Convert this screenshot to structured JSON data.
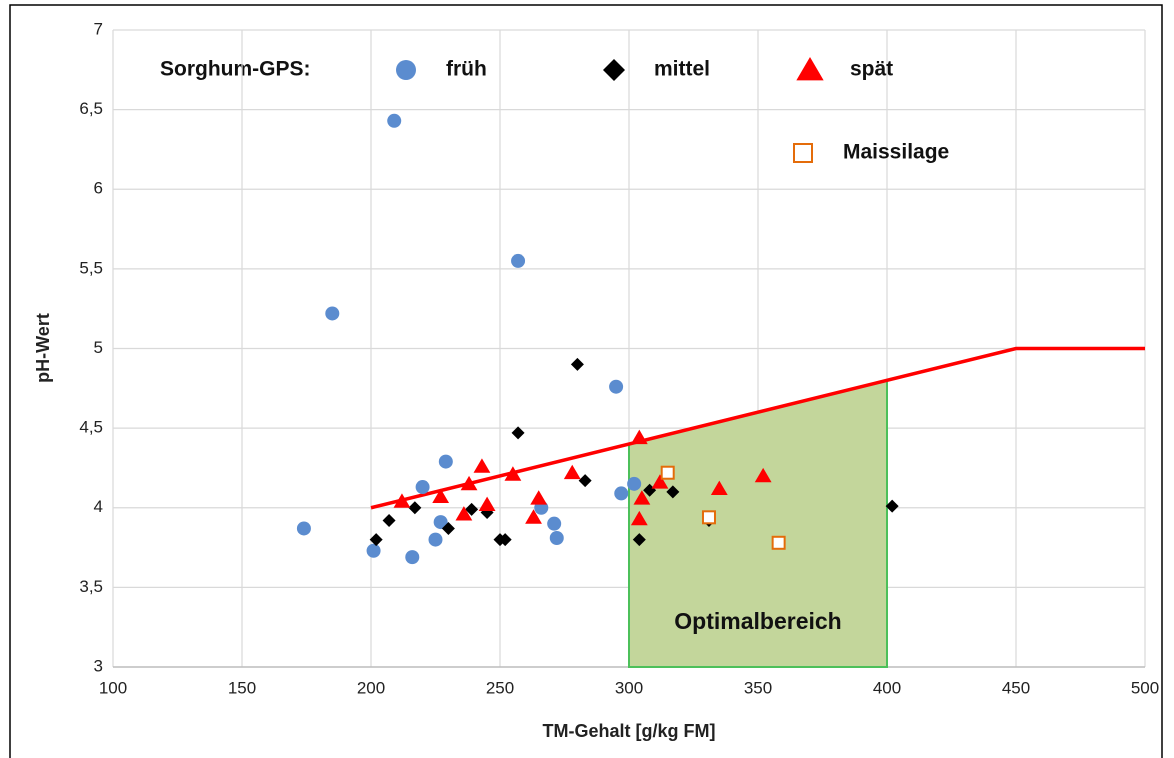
{
  "chart_data": {
    "type": "scatter",
    "legend_title": "Sorghum-GPS:",
    "xlabel": "TM-Gehalt [g/kg FM]",
    "ylabel": "pH-Wert",
    "xlim": [
      100,
      500
    ],
    "ylim": [
      3,
      7
    ],
    "xticks": [
      100,
      150,
      200,
      250,
      300,
      350,
      400,
      450,
      500
    ],
    "yticks": [
      3,
      {
        "value": 3.5,
        "label": "3,5"
      },
      4,
      {
        "value": 4.5,
        "label": "4,5"
      },
      5,
      {
        "value": 5.5,
        "label": "5,5"
      },
      6,
      {
        "value": 6.5,
        "label": "6,5"
      },
      7
    ],
    "grid": true,
    "series": [
      {
        "name": "früh",
        "marker": "circle",
        "color": "#5b8ccf",
        "x": [
          174,
          185,
          209,
          201,
          216,
          220,
          229,
          227,
          225,
          257,
          266,
          271,
          272,
          295,
          297,
          302
        ],
        "y": [
          3.87,
          5.22,
          6.43,
          3.73,
          3.69,
          4.13,
          4.29,
          3.91,
          3.8,
          5.55,
          4.0,
          3.9,
          3.81,
          4.76,
          4.09,
          4.15
        ]
      },
      {
        "name": "mittel",
        "marker": "diamond",
        "color": "#000000",
        "x": [
          202,
          207,
          217,
          230,
          239,
          245,
          257,
          250,
          252,
          280,
          283,
          304,
          308,
          317,
          331,
          402
        ],
        "y": [
          3.8,
          3.92,
          4.0,
          3.87,
          3.99,
          3.97,
          4.47,
          3.8,
          3.8,
          4.9,
          4.17,
          3.8,
          4.11,
          4.1,
          3.92,
          4.01
        ]
      },
      {
        "name": "spät",
        "marker": "triangle",
        "color": "#ff0000",
        "x": [
          212,
          227,
          238,
          236,
          243,
          245,
          255,
          265,
          263,
          278,
          304,
          304,
          305,
          312,
          335,
          352
        ],
        "y": [
          4.04,
          4.07,
          4.15,
          3.96,
          4.26,
          4.02,
          4.21,
          4.06,
          3.94,
          4.22,
          4.44,
          3.93,
          4.06,
          4.16,
          4.12,
          4.2
        ]
      },
      {
        "name": "Maissilage",
        "marker": "square",
        "color": "#e46c0a",
        "x": [
          315,
          331,
          358
        ],
        "y": [
          4.22,
          3.94,
          3.78
        ]
      }
    ],
    "threshold": {
      "color": "#ff0000",
      "x": [
        200,
        450,
        500
      ],
      "y": [
        4,
        5,
        5
      ]
    },
    "region": {
      "label": "Optimalbereich",
      "color": "#c3d69b",
      "edge": "#4cc05a",
      "x": [
        300,
        300,
        400,
        400
      ],
      "y": [
        3,
        4.4,
        4.8,
        3
      ]
    }
  }
}
